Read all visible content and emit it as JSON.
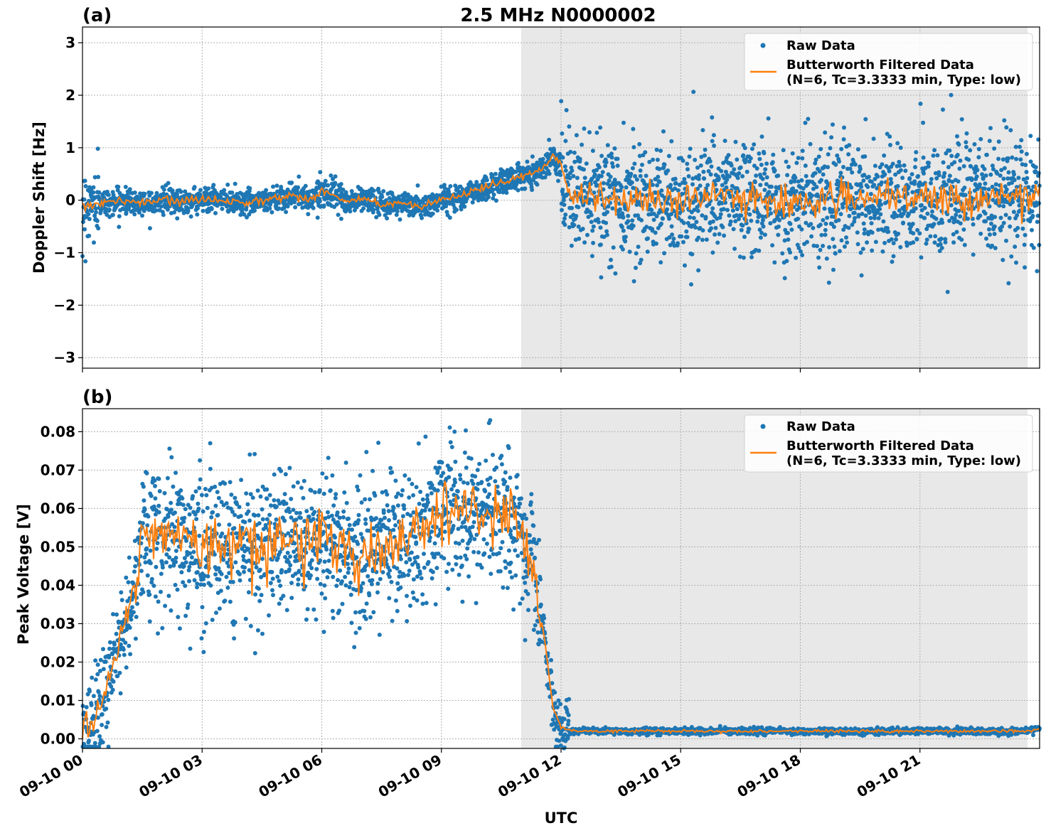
{
  "figure": {
    "title": "2.5 MHz N0000002",
    "xlabel": "UTC",
    "x_ticks": [
      "09-10 00",
      "09-10 03",
      "09-10 06",
      "09-10 09",
      "09-10 12",
      "09-10 15",
      "09-10 18",
      "09-10 21"
    ]
  },
  "colors": {
    "raw": "#1f77b4",
    "filtered": "#ff7f0e",
    "shade": "#e8e8e8",
    "grid": "#b0b0b0"
  },
  "chart_data": [
    {
      "type": "scatter",
      "panel_label": "(a)",
      "ylabel": "Doppler Shift [Hz]",
      "xlim_hours": [
        0,
        24
      ],
      "ylim": [
        -3.2,
        3.3
      ],
      "y_ticks": [
        3,
        2,
        1,
        0,
        -1,
        -2,
        -3
      ],
      "y_tick_labels": [
        "3",
        "2",
        "1",
        "0",
        "−1",
        "−2",
        "−3"
      ],
      "grid": true,
      "legend_placement": "top-right",
      "shaded_region_hours": [
        11,
        23.7
      ],
      "series": [
        {
          "name": "Raw Data",
          "kind": "points"
        },
        {
          "name": "Butterworth Filtered Data\n(N=6, Tc=3.3333 min, Type: low)",
          "kind": "line",
          "x_hours": [
            0,
            0.5,
            1,
            1.5,
            2,
            2.5,
            3,
            3.5,
            4,
            4.5,
            5,
            5.3,
            5.7,
            6,
            6.3,
            6.6,
            7,
            7.5,
            8,
            8.5,
            9,
            9.5,
            10,
            10.5,
            11,
            11.5,
            11.8,
            12,
            12.2,
            13,
            14,
            15,
            16,
            17,
            18,
            19,
            20,
            21,
            22,
            23,
            23.7
          ],
          "values": [
            -0.1,
            -0.05,
            -0.02,
            -0.05,
            0.0,
            -0.03,
            0.02,
            0.0,
            -0.03,
            0.0,
            0.05,
            0.1,
            0.0,
            0.2,
            0.1,
            -0.05,
            0.05,
            -0.1,
            -0.05,
            -0.15,
            0.0,
            0.1,
            0.2,
            0.35,
            0.45,
            0.6,
            0.85,
            0.7,
            0.1,
            0.0,
            0.05,
            -0.05,
            0.1,
            0.0,
            -0.05,
            0.05,
            0.0,
            0.05,
            0.0,
            0.1,
            0.05
          ]
        }
      ]
    },
    {
      "type": "scatter",
      "panel_label": "(b)",
      "ylabel": "Peak Voltage [V]",
      "xlim_hours": [
        0,
        24
      ],
      "ylim": [
        -0.0025,
        0.086
      ],
      "y_ticks": [
        0.08,
        0.07,
        0.06,
        0.05,
        0.04,
        0.03,
        0.02,
        0.01,
        0.0
      ],
      "y_tick_labels": [
        "0.08",
        "0.07",
        "0.06",
        "0.05",
        "0.04",
        "0.03",
        "0.02",
        "0.01",
        "0.00"
      ],
      "grid": true,
      "legend_placement": "top-right",
      "shaded_region_hours": [
        11,
        23.7
      ],
      "series": [
        {
          "name": "Raw Data",
          "kind": "points"
        },
        {
          "name": "Butterworth Filtered Data\n(N=6, Tc=3.3333 min, Type: low)",
          "kind": "line",
          "x_hours": [
            0,
            0.3,
            0.5,
            0.8,
            1,
            1.2,
            1.5,
            1.8,
            2,
            2.5,
            3,
            3.5,
            4,
            4.5,
            5,
            5.5,
            6,
            6.5,
            7,
            7.5,
            8,
            8.5,
            9,
            9.5,
            10,
            10.5,
            11,
            11.3,
            11.6,
            11.8,
            12.0,
            12.3,
            13,
            14,
            15,
            16,
            17,
            18,
            19,
            20,
            21,
            22,
            23,
            23.7,
            24
          ],
          "values": [
            0.003,
            0.005,
            0.01,
            0.02,
            0.03,
            0.035,
            0.05,
            0.055,
            0.053,
            0.052,
            0.05,
            0.05,
            0.052,
            0.05,
            0.052,
            0.05,
            0.052,
            0.05,
            0.048,
            0.05,
            0.052,
            0.055,
            0.06,
            0.058,
            0.06,
            0.058,
            0.055,
            0.045,
            0.025,
            0.008,
            0.003,
            0.002,
            0.002,
            0.002,
            0.002,
            0.002,
            0.002,
            0.002,
            0.002,
            0.002,
            0.002,
            0.002,
            0.002,
            0.002,
            0.0025
          ]
        }
      ]
    }
  ]
}
